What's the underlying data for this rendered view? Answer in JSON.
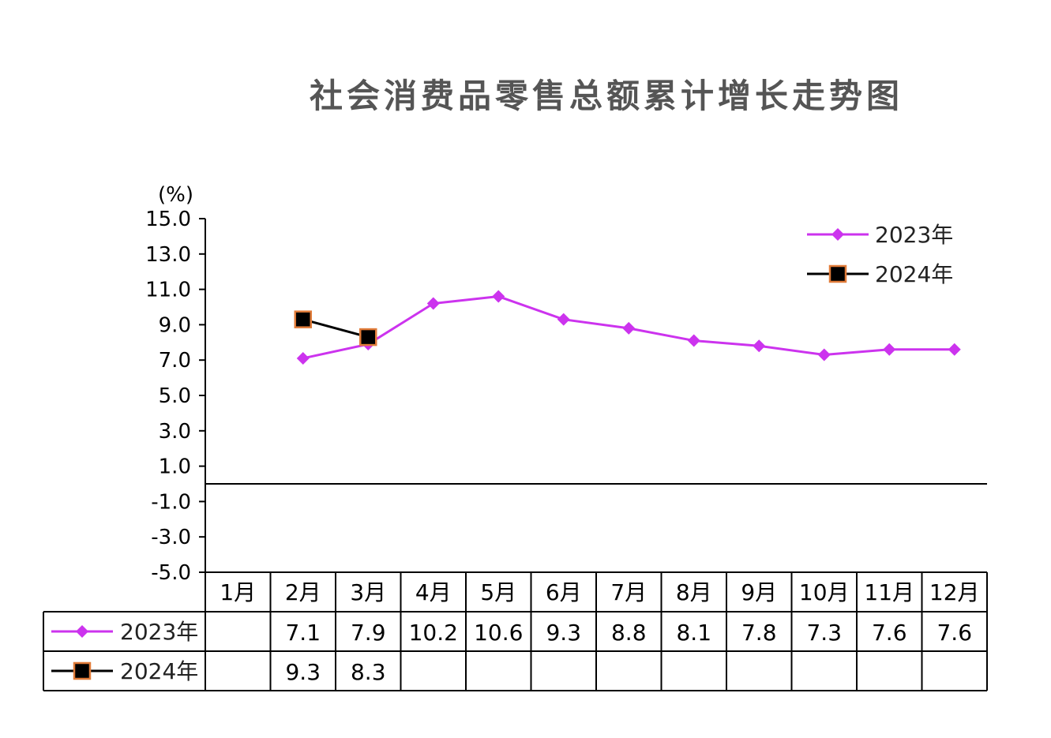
{
  "chart_data": {
    "type": "line",
    "title": "社会消费品零售总额累计增长走势图",
    "unit_label": "(%)",
    "categories": [
      "1月",
      "2月",
      "3月",
      "4月",
      "5月",
      "6月",
      "7月",
      "8月",
      "9月",
      "10月",
      "11月",
      "12月"
    ],
    "y_ticks": [
      "15.0",
      "13.0",
      "11.0",
      "9.0",
      "7.0",
      "5.0",
      "3.0",
      "1.0",
      "-1.0",
      "-3.0",
      "-5.0"
    ],
    "ylim": [
      -5,
      15
    ],
    "series": [
      {
        "name": "2023年",
        "color": "#cc33ee",
        "marker": "diamond",
        "values": [
          null,
          7.1,
          7.9,
          10.2,
          10.6,
          9.3,
          8.8,
          8.1,
          7.8,
          7.3,
          7.6,
          7.6
        ],
        "table_values": [
          "",
          "7.1",
          "7.9",
          "10.2",
          "10.6",
          "9.3",
          "8.8",
          "8.1",
          "7.8",
          "7.3",
          "7.6",
          "7.6"
        ]
      },
      {
        "name": "2024年",
        "color": "#000000",
        "marker": "square",
        "marker_edge": "#e07b39",
        "values": [
          null,
          9.3,
          8.3,
          null,
          null,
          null,
          null,
          null,
          null,
          null,
          null,
          null
        ],
        "table_values": [
          "",
          "9.3",
          "8.3",
          "",
          "",
          "",
          "",
          "",
          "",
          "",
          "",
          ""
        ]
      }
    ],
    "legend_position": "top-right",
    "grid": false
  }
}
